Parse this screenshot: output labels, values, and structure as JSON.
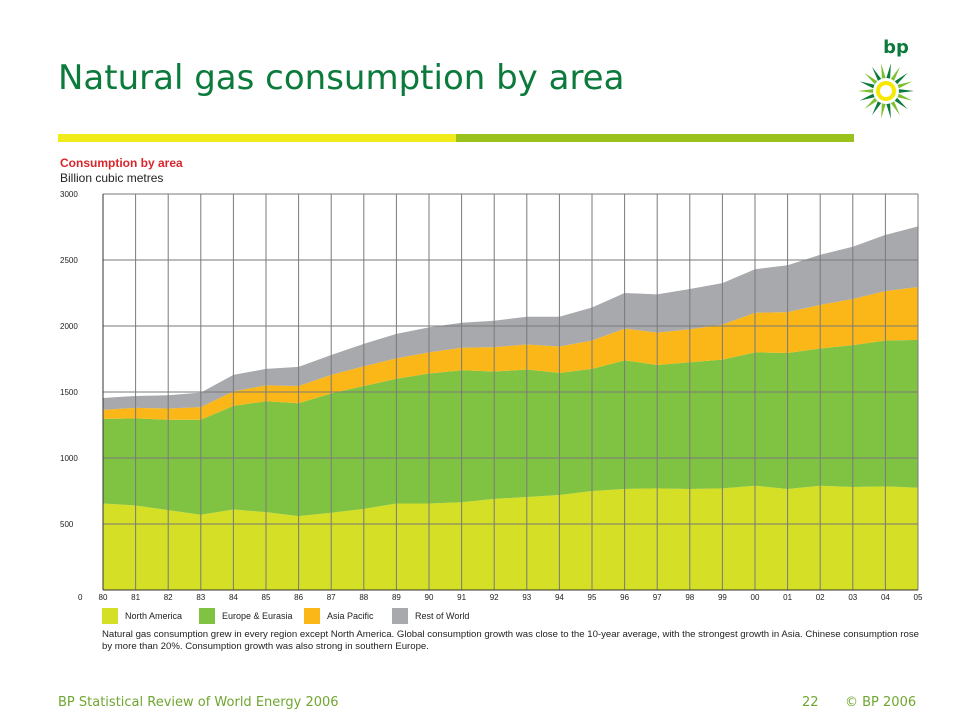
{
  "slide": {
    "title": "Natural gas consumption by area",
    "footer_left": "BP Statistical Review of World Energy 2006",
    "page_number": "22",
    "copyright": "© BP 2006",
    "logo_text": "bp"
  },
  "colors": {
    "title_green": "#0b7a3b",
    "bar_yellow": "#f2eb1c",
    "bar_green": "#99c21d",
    "chart_title_red": "#d8262c",
    "footer_green": "#6fa631"
  },
  "chart_data": {
    "type": "area",
    "stacked": true,
    "title": "Consumption by area",
    "ylabel": "Billion cubic metres",
    "xlabel": "",
    "x": [
      "80",
      "81",
      "82",
      "83",
      "84",
      "85",
      "86",
      "87",
      "88",
      "89",
      "90",
      "91",
      "92",
      "93",
      "94",
      "95",
      "96",
      "97",
      "98",
      "99",
      "00",
      "01",
      "02",
      "03",
      "04",
      "05"
    ],
    "ylim": [
      0,
      3000
    ],
    "yticks": [
      0,
      500,
      1000,
      1500,
      2000,
      2500,
      3000
    ],
    "grid": true,
    "legend_position": "bottom",
    "series": [
      {
        "name": "North America",
        "color": "#d4df26",
        "values": [
          655,
          640,
          605,
          570,
          610,
          590,
          560,
          585,
          615,
          655,
          655,
          665,
          690,
          705,
          720,
          750,
          765,
          770,
          765,
          770,
          790,
          765,
          790,
          780,
          785,
          775
        ]
      },
      {
        "name": "Europe & Eurasia",
        "color": "#80c342",
        "values": [
          640,
          660,
          685,
          720,
          785,
          840,
          855,
          905,
          930,
          945,
          985,
          1000,
          965,
          965,
          925,
          925,
          975,
          935,
          960,
          975,
          1010,
          1030,
          1040,
          1075,
          1105,
          1120
        ]
      },
      {
        "name": "Asia Pacific",
        "color": "#fbb718",
        "values": [
          70,
          80,
          85,
          95,
          110,
          120,
          130,
          140,
          150,
          155,
          160,
          170,
          185,
          190,
          200,
          215,
          240,
          245,
          250,
          265,
          300,
          310,
          330,
          350,
          375,
          400
        ]
      },
      {
        "name": "Rest of World",
        "color": "#a7a9ac",
        "values": [
          90,
          90,
          100,
          110,
          125,
          125,
          145,
          150,
          170,
          185,
          190,
          190,
          200,
          210,
          225,
          250,
          270,
          290,
          305,
          315,
          330,
          355,
          380,
          395,
          425,
          460
        ]
      }
    ],
    "annotation": "Natural gas consumption grew in every region except North America. Global consumption growth was close to the 10-year average, with the strongest growth in Asia. Chinese consumption rose by more than 20%. Consumption growth was also strong in southern Europe."
  }
}
